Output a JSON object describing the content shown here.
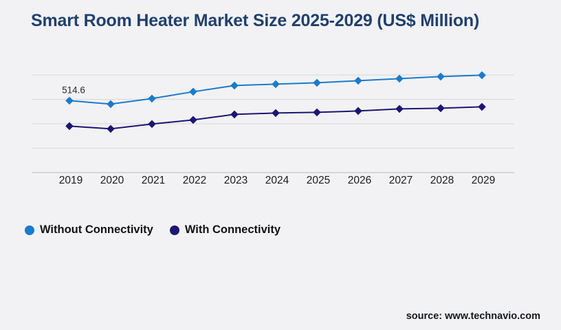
{
  "header": {
    "title": "Smart Room Heater Market Size 2025-2029 (US$ Million)"
  },
  "legend": {
    "items": [
      {
        "label": "Without Connectivity",
        "color": "#1a7bcc"
      },
      {
        "label": "With Connectivity",
        "color": "#1c1672"
      }
    ]
  },
  "footer": {
    "source": "source: www.technavio.com"
  },
  "colors": {
    "background": "#f2f2f4",
    "title_navy": "#21406e",
    "series_light_blue": "#1a7bcc",
    "series_dark_navy": "#1c1672",
    "gridline": "#d7d8da",
    "axis_line": "#b9babd"
  },
  "chart_data": {
    "type": "line",
    "title": "Smart Room Heater Market Size 2025-2029 (US$ Million)",
    "x": [
      "2019",
      "2020",
      "2021",
      "2022",
      "2023",
      "2024",
      "2025",
      "2026",
      "2027",
      "2028",
      "2029"
    ],
    "series": [
      {
        "name": "Without Connectivity",
        "color": "#1a7bcc",
        "marker": "diamond",
        "values": [
          514.6,
          500.5,
          523.1,
          551.2,
          576.6,
          582.2,
          587.8,
          596.3,
          604.7,
          613.2,
          618.8
        ]
      },
      {
        "name": "With Connectivity",
        "color": "#1c1672",
        "marker": "diamond",
        "values": [
          410.4,
          399.1,
          418.8,
          435.7,
          458.3,
          463.9,
          466.7,
          472.3,
          480.8,
          483.6,
          489.2
        ]
      }
    ],
    "annotations": [
      {
        "text": "514.6",
        "series": 0,
        "pointIndex": 0
      }
    ],
    "ylim": [
      220,
      620
    ],
    "gridlines": 5,
    "y_axis_labels_visible": false,
    "grid": "horizontal-only",
    "legend_position": "bottom-left",
    "xlabel": "",
    "ylabel": ""
  }
}
